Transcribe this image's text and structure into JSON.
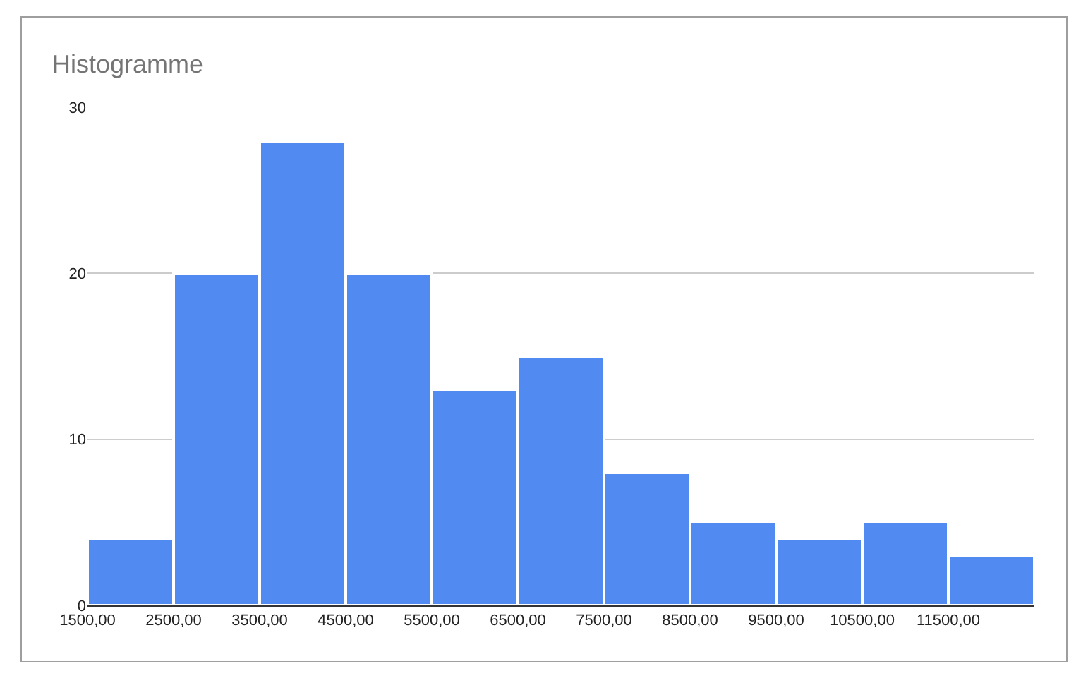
{
  "chart_data": {
    "type": "histogram",
    "title": "Histogramme",
    "bins": [
      1500,
      2500,
      3500,
      4500,
      5500,
      6500,
      7500,
      8500,
      9500,
      10500,
      11500,
      12500
    ],
    "values": [
      4,
      20,
      28,
      20,
      13,
      15,
      8,
      5,
      4,
      5,
      3
    ],
    "color": "#518af0",
    "xlim": [
      1500,
      12500
    ],
    "xticks": [
      {
        "value": 1500,
        "label": "1500,00"
      },
      {
        "value": 2500,
        "label": "2500,00"
      },
      {
        "value": 3500,
        "label": "3500,00"
      },
      {
        "value": 4500,
        "label": "4500,00"
      },
      {
        "value": 5500,
        "label": "5500,00"
      },
      {
        "value": 6500,
        "label": "6500,00"
      },
      {
        "value": 7500,
        "label": "7500,00"
      },
      {
        "value": 8500,
        "label": "8500,00"
      },
      {
        "value": 9500,
        "label": "9500,00"
      },
      {
        "value": 10500,
        "label": "10500,00"
      },
      {
        "value": 11500,
        "label": "11500,00"
      }
    ],
    "ylim": [
      0,
      30
    ],
    "yticks": [
      0,
      10,
      20,
      30
    ],
    "grid": "y"
  }
}
